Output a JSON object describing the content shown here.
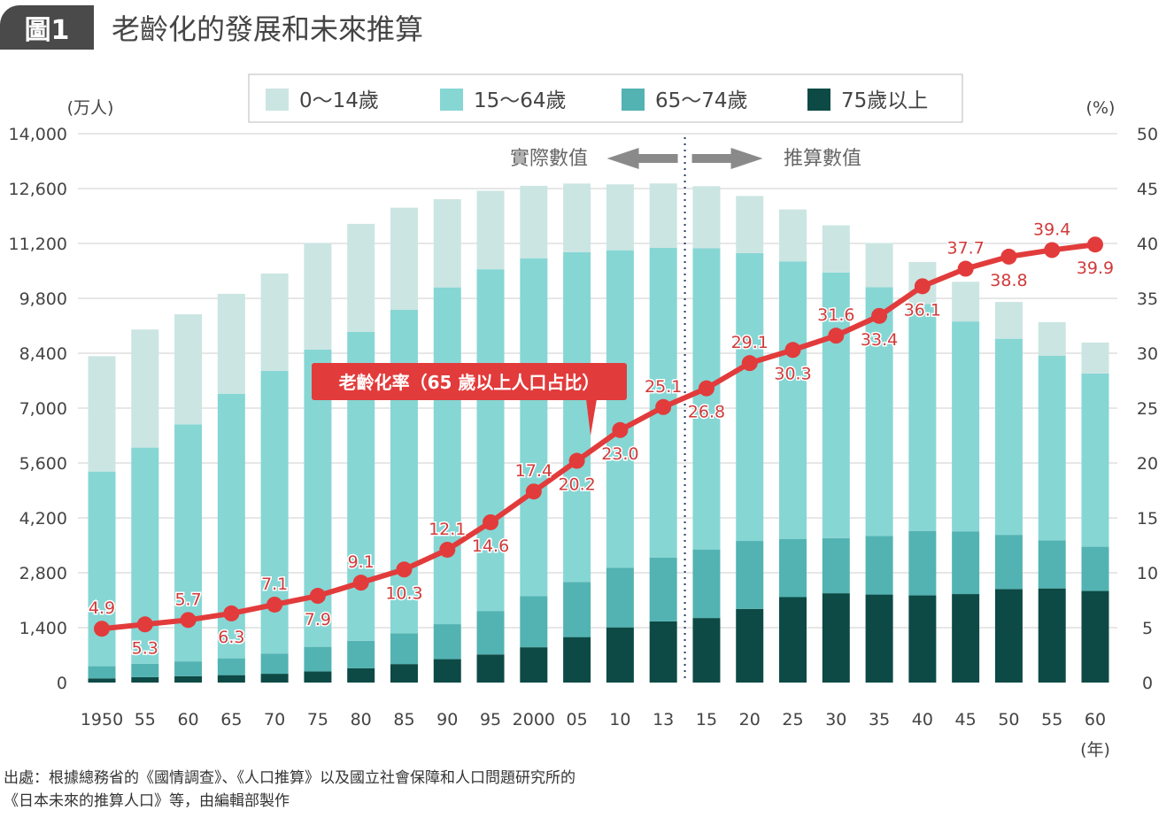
{
  "header": {
    "figure_label": "圖1",
    "title": "老齡化的發展和未來推算"
  },
  "chart_data": {
    "type": "bar+line",
    "title": "老齡化的發展和未來推算",
    "y_left_label": "(万人)",
    "y_right_label": "(%)",
    "x_unit_label": "(年)",
    "ylim_left": [
      0,
      14000
    ],
    "ylim_right": [
      0,
      50
    ],
    "y_left_ticks": [
      "0",
      "1,400",
      "2,800",
      "4,200",
      "5,600",
      "7,000",
      "8,400",
      "9,800",
      "11,200",
      "12,600",
      "14,000"
    ],
    "y_right_ticks": [
      "0",
      "5",
      "10",
      "15",
      "20",
      "25",
      "30",
      "35",
      "40",
      "45",
      "50"
    ],
    "grid": true,
    "legend_position": "top",
    "categories": [
      "1950",
      "55",
      "60",
      "65",
      "70",
      "75",
      "80",
      "85",
      "90",
      "95",
      "2000",
      "05",
      "10",
      "13",
      "15",
      "20",
      "25",
      "30",
      "35",
      "40",
      "45",
      "50",
      "55",
      "60"
    ],
    "stacked_series": [
      {
        "name": "75歲以上",
        "color": "#0d4a45",
        "values": [
          107,
          138,
          163,
          189,
          224,
          284,
          366,
          471,
          597,
          717,
          900,
          1160,
          1407,
          1560,
          1646,
          1879,
          2179,
          2278,
          2245,
          2223,
          2257,
          2385,
          2401,
          2336
        ]
      },
      {
        "name": "65～74歲",
        "color": "#52b3b2",
        "values": [
          309,
          338,
          376,
          429,
          516,
          627,
          699,
          787,
          892,
          1109,
          1301,
          1407,
          1517,
          1630,
          1749,
          1733,
          1479,
          1407,
          1495,
          1645,
          1600,
          1383,
          1225,
          1128
        ]
      },
      {
        "name": "15～64歲",
        "color": "#86d6d4",
        "values": [
          4966,
          5517,
          6047,
          6744,
          7212,
          7581,
          7883,
          8251,
          8590,
          8716,
          8622,
          8409,
          8103,
          7901,
          7682,
          7341,
          7085,
          6773,
          6343,
          5787,
          5353,
          5001,
          4706,
          4418
        ]
      },
      {
        "name": "0～14歲",
        "color": "#cbe5e2",
        "values": [
          2943,
          3012,
          2807,
          2553,
          2482,
          2722,
          2751,
          2603,
          2249,
          2001,
          1847,
          1752,
          1680,
          1639,
          1583,
          1457,
          1324,
          1204,
          1129,
          1073,
          1012,
          939,
          861,
          791
        ]
      }
    ],
    "legend_order": [
      "0～14歲",
      "15～64歲",
      "65～74歲",
      "75歲以上"
    ],
    "line_series": {
      "name": "老齡化率（65 歲以上人口占比）",
      "color": "#e23b3b",
      "axis": "right",
      "values": [
        4.9,
        5.3,
        5.7,
        6.3,
        7.1,
        7.9,
        9.1,
        10.3,
        12.1,
        14.6,
        17.4,
        20.2,
        23.0,
        25.1,
        26.8,
        29.1,
        30.3,
        31.6,
        33.4,
        36.1,
        37.7,
        38.8,
        39.4,
        39.9
      ],
      "labels": [
        "4.9",
        "5.3",
        "5.7",
        "6.3",
        "7.1",
        "7.9",
        "9.1",
        "10.3",
        "12.1",
        "14.6",
        "17.4",
        "20.2",
        "23.0",
        "25.1",
        "26.8",
        "29.1",
        "30.3",
        "31.6",
        "33.4",
        "36.1",
        "37.7",
        "38.8",
        "39.4",
        "39.9"
      ],
      "label_placement": [
        "above",
        "below",
        "above",
        "below",
        "above",
        "below",
        "above",
        "below",
        "above",
        "below",
        "above",
        "below",
        "below",
        "above",
        "below",
        "above",
        "below",
        "above",
        "below",
        "below",
        "above",
        "below",
        "above",
        "below"
      ]
    },
    "annotations": {
      "actual": "實際數值",
      "projected": "推算數值",
      "divider_between": [
        "13",
        "15"
      ]
    }
  },
  "source": {
    "line1": "出處：根據總務省的《國情調查》、《人口推算》以及國立社會保障和人口問題研究所的",
    "line2": "《日本未來的推算人口》等，由編輯部製作"
  }
}
